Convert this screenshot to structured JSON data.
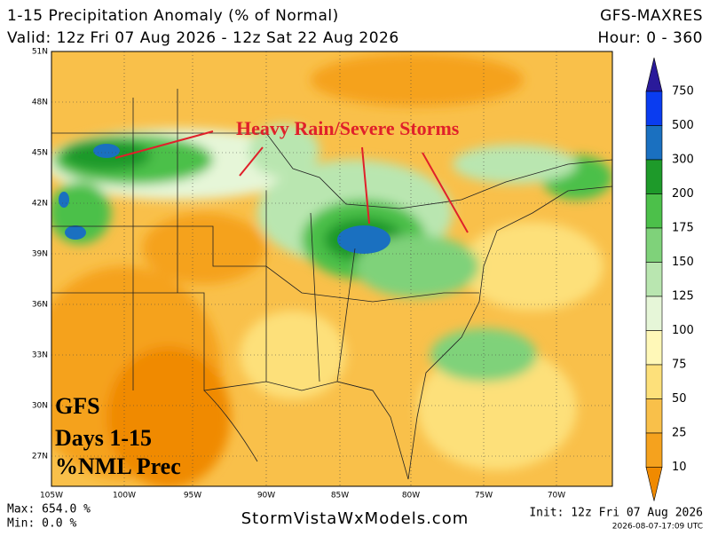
{
  "header": {
    "title": "1-15 Precipitation Anomaly (% of Normal)",
    "valid": "Valid: 12z Fri 07 Aug 2026 - 12z Sat 22 Aug 2026",
    "model": "GFS-MAXRES",
    "hour": "Hour: 0 - 360"
  },
  "map": {
    "lat_labels": [
      "51N",
      "48N",
      "45N",
      "42N",
      "39N",
      "36N",
      "33N",
      "30N",
      "27N"
    ],
    "lon_labels": [
      "105W",
      "100W",
      "95W",
      "90W",
      "85W",
      "80W",
      "75W",
      "70W"
    ],
    "annotation": "Heavy Rain/Severe Storms",
    "overlay": [
      "GFS",
      "Days 1-15",
      "%NML Prec"
    ]
  },
  "colorbar": {
    "levels": [
      750,
      500,
      300,
      200,
      175,
      150,
      125,
      100,
      75,
      50,
      25,
      10
    ],
    "colors": [
      "#2a1a9a",
      "#0a3cf0",
      "#1a70c0",
      "#1e9a2a",
      "#4cc04a",
      "#7fd27a",
      "#b9e6b0",
      "#e6f6d8",
      "#fff8b8",
      "#fde07a",
      "#f9c04a",
      "#f5a21e",
      "#f08a00"
    ]
  },
  "footer": {
    "max": "Max: 654.0 %",
    "min": "Min: 0.0 %",
    "site": "StormVistaWxModels.com",
    "init": "Init: 12z Fri 07 Aug 2026",
    "stamp": "2026-08-07-17:09 UTC"
  }
}
